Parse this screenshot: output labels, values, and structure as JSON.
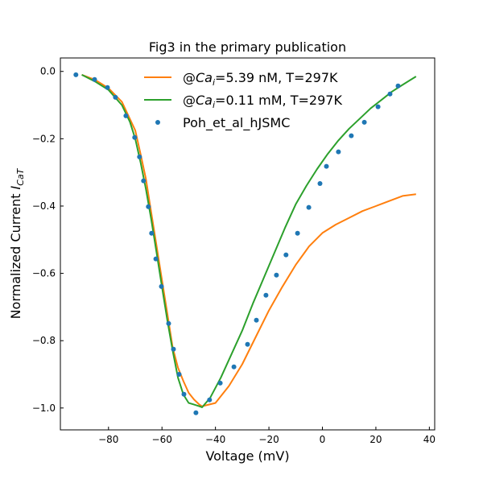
{
  "chart_data": {
    "type": "line",
    "title": "Fig3 in the primary publication",
    "xlabel": "Voltage (mV)",
    "ylabel": "Normalized Current I_CaT",
    "ylabel_main": "Normalized Current ",
    "ylabel_italic": "I",
    "ylabel_sub": "CaT",
    "xlim": [
      -98,
      42
    ],
    "ylim": [
      -1.065,
      0.04
    ],
    "xticks": [
      -80,
      -60,
      -40,
      -20,
      0,
      20,
      40
    ],
    "xtick_labels": [
      "−80",
      "−60",
      "−40",
      "−20",
      "0",
      "20",
      "40"
    ],
    "yticks": [
      0.0,
      -0.2,
      -0.4,
      -0.6,
      -0.8,
      -1.0
    ],
    "ytick_labels": [
      "0.0",
      "−0.2",
      "−0.4",
      "−0.6",
      "−0.8",
      "−1.0"
    ],
    "grid": false,
    "legend_placement": "top-center",
    "series": [
      {
        "name": "@Ca_i=5.39 nM, T=297K",
        "label_prefix": "@",
        "label_italic": "Ca",
        "label_sub": "i",
        "label_suffix": "=5.39 nM, T=297K",
        "kind": "line",
        "color": "#ff7f0e",
        "x": [
          -90,
          -85,
          -80,
          -75,
          -70,
          -68,
          -66,
          -64,
          -62,
          -60,
          -58,
          -56,
          -54,
          -52,
          -50,
          -48,
          -46,
          -45,
          -40,
          -35,
          -30,
          -25,
          -20,
          -15,
          -10,
          -5,
          0,
          5,
          10,
          15,
          20,
          25,
          30,
          35
        ],
        "y": [
          -0.01,
          -0.025,
          -0.05,
          -0.09,
          -0.175,
          -0.245,
          -0.32,
          -0.42,
          -0.52,
          -0.62,
          -0.72,
          -0.82,
          -0.88,
          -0.92,
          -0.955,
          -0.975,
          -0.99,
          -0.995,
          -0.985,
          -0.935,
          -0.87,
          -0.79,
          -0.71,
          -0.64,
          -0.575,
          -0.52,
          -0.48,
          -0.455,
          -0.435,
          -0.415,
          -0.4,
          -0.385,
          -0.37,
          -0.365
        ]
      },
      {
        "name": "@Ca_i=0.11 mM, T=297K",
        "label_prefix": "@",
        "label_italic": "Ca",
        "label_sub": "i",
        "label_suffix": "=0.11 mM, T=297K",
        "kind": "line",
        "color": "#2ca02c",
        "x": [
          -90,
          -85,
          -80,
          -75,
          -72,
          -70,
          -68,
          -66,
          -64,
          -62,
          -60,
          -58,
          -56,
          -54,
          -52,
          -50,
          -48,
          -46,
          -45,
          -42,
          -38,
          -34,
          -30,
          -26,
          -22,
          -18,
          -14,
          -10,
          -6,
          -2,
          2,
          6,
          10,
          14,
          18,
          22,
          26,
          30,
          35
        ],
        "y": [
          -0.01,
          -0.03,
          -0.055,
          -0.1,
          -0.15,
          -0.2,
          -0.27,
          -0.35,
          -0.44,
          -0.54,
          -0.64,
          -0.74,
          -0.83,
          -0.91,
          -0.96,
          -0.985,
          -0.99,
          -0.995,
          -0.998,
          -0.97,
          -0.91,
          -0.84,
          -0.77,
          -0.69,
          -0.615,
          -0.54,
          -0.465,
          -0.395,
          -0.34,
          -0.29,
          -0.245,
          -0.205,
          -0.17,
          -0.14,
          -0.11,
          -0.085,
          -0.06,
          -0.04,
          -0.015
        ]
      },
      {
        "name": "Poh_et_al_hJSMC",
        "kind": "scatter",
        "color": "#1f77b4",
        "x": [
          -92.2,
          -85.2,
          -80.4,
          -77.4,
          -73.5,
          -70.2,
          -68.4,
          -66.9,
          -65.1,
          -63.9,
          -62.3,
          -60.2,
          -57.5,
          -55.7,
          -53.6,
          -51.8,
          -47.3,
          -42.2,
          -38.2,
          -33.1,
          -28.0,
          -24.7,
          -21.1,
          -17.2,
          -13.6,
          -9.3,
          -5.1,
          -0.9,
          1.5,
          6.0,
          10.8,
          15.7,
          20.8,
          25.3,
          28.3
        ],
        "y": [
          -0.01,
          -0.024,
          -0.048,
          -0.077,
          -0.132,
          -0.196,
          -0.254,
          -0.325,
          -0.402,
          -0.481,
          -0.557,
          -0.639,
          -0.749,
          -0.825,
          -0.9,
          -0.959,
          -1.014,
          -0.976,
          -0.926,
          -0.878,
          -0.811,
          -0.739,
          -0.665,
          -0.605,
          -0.545,
          -0.481,
          -0.404,
          -0.333,
          -0.282,
          -0.239,
          -0.191,
          -0.151,
          -0.105,
          -0.067,
          -0.043
        ]
      }
    ]
  }
}
